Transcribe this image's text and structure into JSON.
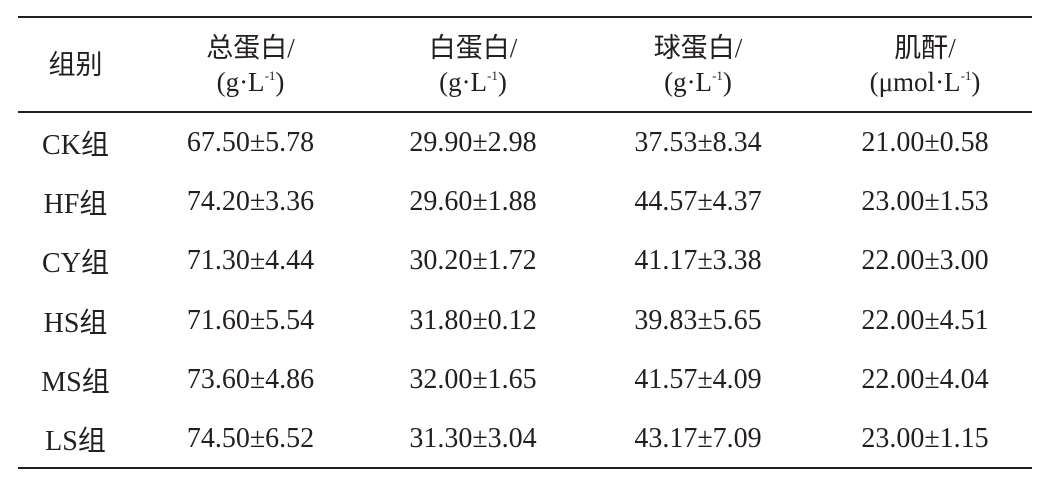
{
  "table": {
    "headers": [
      {
        "name": "组别",
        "unit": "",
        "sup": "",
        "close": ""
      },
      {
        "name": "总蛋白/",
        "unit": "(g·L",
        "sup": "-1",
        "close": ")"
      },
      {
        "name": "白蛋白/",
        "unit": "(g·L",
        "sup": "-1",
        "close": ")"
      },
      {
        "name": "球蛋白/",
        "unit": "(g·L",
        "sup": "-1",
        "close": ")"
      },
      {
        "name": "肌酐/",
        "unit": "(μmol·L",
        "sup": "-1",
        "close": ")"
      }
    ],
    "rows": [
      [
        "CK组",
        "67.50±5.78",
        "29.90±2.98",
        "37.53±8.34",
        "21.00±0.58"
      ],
      [
        "HF组",
        "74.20±3.36",
        "29.60±1.88",
        "44.57±4.37",
        "23.00±1.53"
      ],
      [
        "CY组",
        "71.30±4.44",
        "30.20±1.72",
        "41.17±3.38",
        "22.00±3.00"
      ],
      [
        "HS组",
        "71.60±5.54",
        "31.80±0.12",
        "39.83±5.65",
        "22.00±4.51"
      ],
      [
        "MS组",
        "73.60±4.86",
        "32.00±1.65",
        "41.57±4.09",
        "22.00±4.04"
      ],
      [
        "LS组",
        "74.50±6.52",
        "31.30±3.04",
        "43.17±7.09",
        "23.00±1.15"
      ]
    ]
  }
}
